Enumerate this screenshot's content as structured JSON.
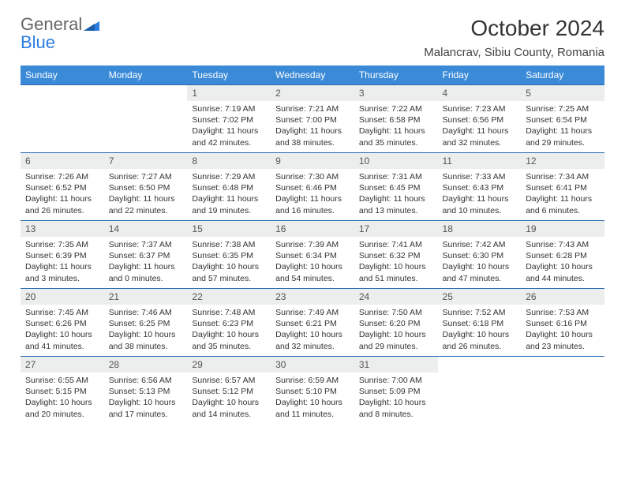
{
  "brand": {
    "line1": "General",
    "line2": "Blue"
  },
  "title": "October 2024",
  "location": "Malancrav, Sibiu County, Romania",
  "colors": {
    "header_bg": "#3a8ad8",
    "header_text": "#ffffff",
    "daynum_bg": "#eceded",
    "border": "#2a6bb0",
    "brand_blue": "#2a7de1"
  },
  "dayNames": [
    "Sunday",
    "Monday",
    "Tuesday",
    "Wednesday",
    "Thursday",
    "Friday",
    "Saturday"
  ],
  "weeks": [
    [
      null,
      null,
      {
        "n": "1",
        "sr": "Sunrise: 7:19 AM",
        "ss": "Sunset: 7:02 PM",
        "d1": "Daylight: 11 hours",
        "d2": "and 42 minutes."
      },
      {
        "n": "2",
        "sr": "Sunrise: 7:21 AM",
        "ss": "Sunset: 7:00 PM",
        "d1": "Daylight: 11 hours",
        "d2": "and 38 minutes."
      },
      {
        "n": "3",
        "sr": "Sunrise: 7:22 AM",
        "ss": "Sunset: 6:58 PM",
        "d1": "Daylight: 11 hours",
        "d2": "and 35 minutes."
      },
      {
        "n": "4",
        "sr": "Sunrise: 7:23 AM",
        "ss": "Sunset: 6:56 PM",
        "d1": "Daylight: 11 hours",
        "d2": "and 32 minutes."
      },
      {
        "n": "5",
        "sr": "Sunrise: 7:25 AM",
        "ss": "Sunset: 6:54 PM",
        "d1": "Daylight: 11 hours",
        "d2": "and 29 minutes."
      }
    ],
    [
      {
        "n": "6",
        "sr": "Sunrise: 7:26 AM",
        "ss": "Sunset: 6:52 PM",
        "d1": "Daylight: 11 hours",
        "d2": "and 26 minutes."
      },
      {
        "n": "7",
        "sr": "Sunrise: 7:27 AM",
        "ss": "Sunset: 6:50 PM",
        "d1": "Daylight: 11 hours",
        "d2": "and 22 minutes."
      },
      {
        "n": "8",
        "sr": "Sunrise: 7:29 AM",
        "ss": "Sunset: 6:48 PM",
        "d1": "Daylight: 11 hours",
        "d2": "and 19 minutes."
      },
      {
        "n": "9",
        "sr": "Sunrise: 7:30 AM",
        "ss": "Sunset: 6:46 PM",
        "d1": "Daylight: 11 hours",
        "d2": "and 16 minutes."
      },
      {
        "n": "10",
        "sr": "Sunrise: 7:31 AM",
        "ss": "Sunset: 6:45 PM",
        "d1": "Daylight: 11 hours",
        "d2": "and 13 minutes."
      },
      {
        "n": "11",
        "sr": "Sunrise: 7:33 AM",
        "ss": "Sunset: 6:43 PM",
        "d1": "Daylight: 11 hours",
        "d2": "and 10 minutes."
      },
      {
        "n": "12",
        "sr": "Sunrise: 7:34 AM",
        "ss": "Sunset: 6:41 PM",
        "d1": "Daylight: 11 hours",
        "d2": "and 6 minutes."
      }
    ],
    [
      {
        "n": "13",
        "sr": "Sunrise: 7:35 AM",
        "ss": "Sunset: 6:39 PM",
        "d1": "Daylight: 11 hours",
        "d2": "and 3 minutes."
      },
      {
        "n": "14",
        "sr": "Sunrise: 7:37 AM",
        "ss": "Sunset: 6:37 PM",
        "d1": "Daylight: 11 hours",
        "d2": "and 0 minutes."
      },
      {
        "n": "15",
        "sr": "Sunrise: 7:38 AM",
        "ss": "Sunset: 6:35 PM",
        "d1": "Daylight: 10 hours",
        "d2": "and 57 minutes."
      },
      {
        "n": "16",
        "sr": "Sunrise: 7:39 AM",
        "ss": "Sunset: 6:34 PM",
        "d1": "Daylight: 10 hours",
        "d2": "and 54 minutes."
      },
      {
        "n": "17",
        "sr": "Sunrise: 7:41 AM",
        "ss": "Sunset: 6:32 PM",
        "d1": "Daylight: 10 hours",
        "d2": "and 51 minutes."
      },
      {
        "n": "18",
        "sr": "Sunrise: 7:42 AM",
        "ss": "Sunset: 6:30 PM",
        "d1": "Daylight: 10 hours",
        "d2": "and 47 minutes."
      },
      {
        "n": "19",
        "sr": "Sunrise: 7:43 AM",
        "ss": "Sunset: 6:28 PM",
        "d1": "Daylight: 10 hours",
        "d2": "and 44 minutes."
      }
    ],
    [
      {
        "n": "20",
        "sr": "Sunrise: 7:45 AM",
        "ss": "Sunset: 6:26 PM",
        "d1": "Daylight: 10 hours",
        "d2": "and 41 minutes."
      },
      {
        "n": "21",
        "sr": "Sunrise: 7:46 AM",
        "ss": "Sunset: 6:25 PM",
        "d1": "Daylight: 10 hours",
        "d2": "and 38 minutes."
      },
      {
        "n": "22",
        "sr": "Sunrise: 7:48 AM",
        "ss": "Sunset: 6:23 PM",
        "d1": "Daylight: 10 hours",
        "d2": "and 35 minutes."
      },
      {
        "n": "23",
        "sr": "Sunrise: 7:49 AM",
        "ss": "Sunset: 6:21 PM",
        "d1": "Daylight: 10 hours",
        "d2": "and 32 minutes."
      },
      {
        "n": "24",
        "sr": "Sunrise: 7:50 AM",
        "ss": "Sunset: 6:20 PM",
        "d1": "Daylight: 10 hours",
        "d2": "and 29 minutes."
      },
      {
        "n": "25",
        "sr": "Sunrise: 7:52 AM",
        "ss": "Sunset: 6:18 PM",
        "d1": "Daylight: 10 hours",
        "d2": "and 26 minutes."
      },
      {
        "n": "26",
        "sr": "Sunrise: 7:53 AM",
        "ss": "Sunset: 6:16 PM",
        "d1": "Daylight: 10 hours",
        "d2": "and 23 minutes."
      }
    ],
    [
      {
        "n": "27",
        "sr": "Sunrise: 6:55 AM",
        "ss": "Sunset: 5:15 PM",
        "d1": "Daylight: 10 hours",
        "d2": "and 20 minutes."
      },
      {
        "n": "28",
        "sr": "Sunrise: 6:56 AM",
        "ss": "Sunset: 5:13 PM",
        "d1": "Daylight: 10 hours",
        "d2": "and 17 minutes."
      },
      {
        "n": "29",
        "sr": "Sunrise: 6:57 AM",
        "ss": "Sunset: 5:12 PM",
        "d1": "Daylight: 10 hours",
        "d2": "and 14 minutes."
      },
      {
        "n": "30",
        "sr": "Sunrise: 6:59 AM",
        "ss": "Sunset: 5:10 PM",
        "d1": "Daylight: 10 hours",
        "d2": "and 11 minutes."
      },
      {
        "n": "31",
        "sr": "Sunrise: 7:00 AM",
        "ss": "Sunset: 5:09 PM",
        "d1": "Daylight: 10 hours",
        "d2": "and 8 minutes."
      },
      null,
      null
    ]
  ]
}
